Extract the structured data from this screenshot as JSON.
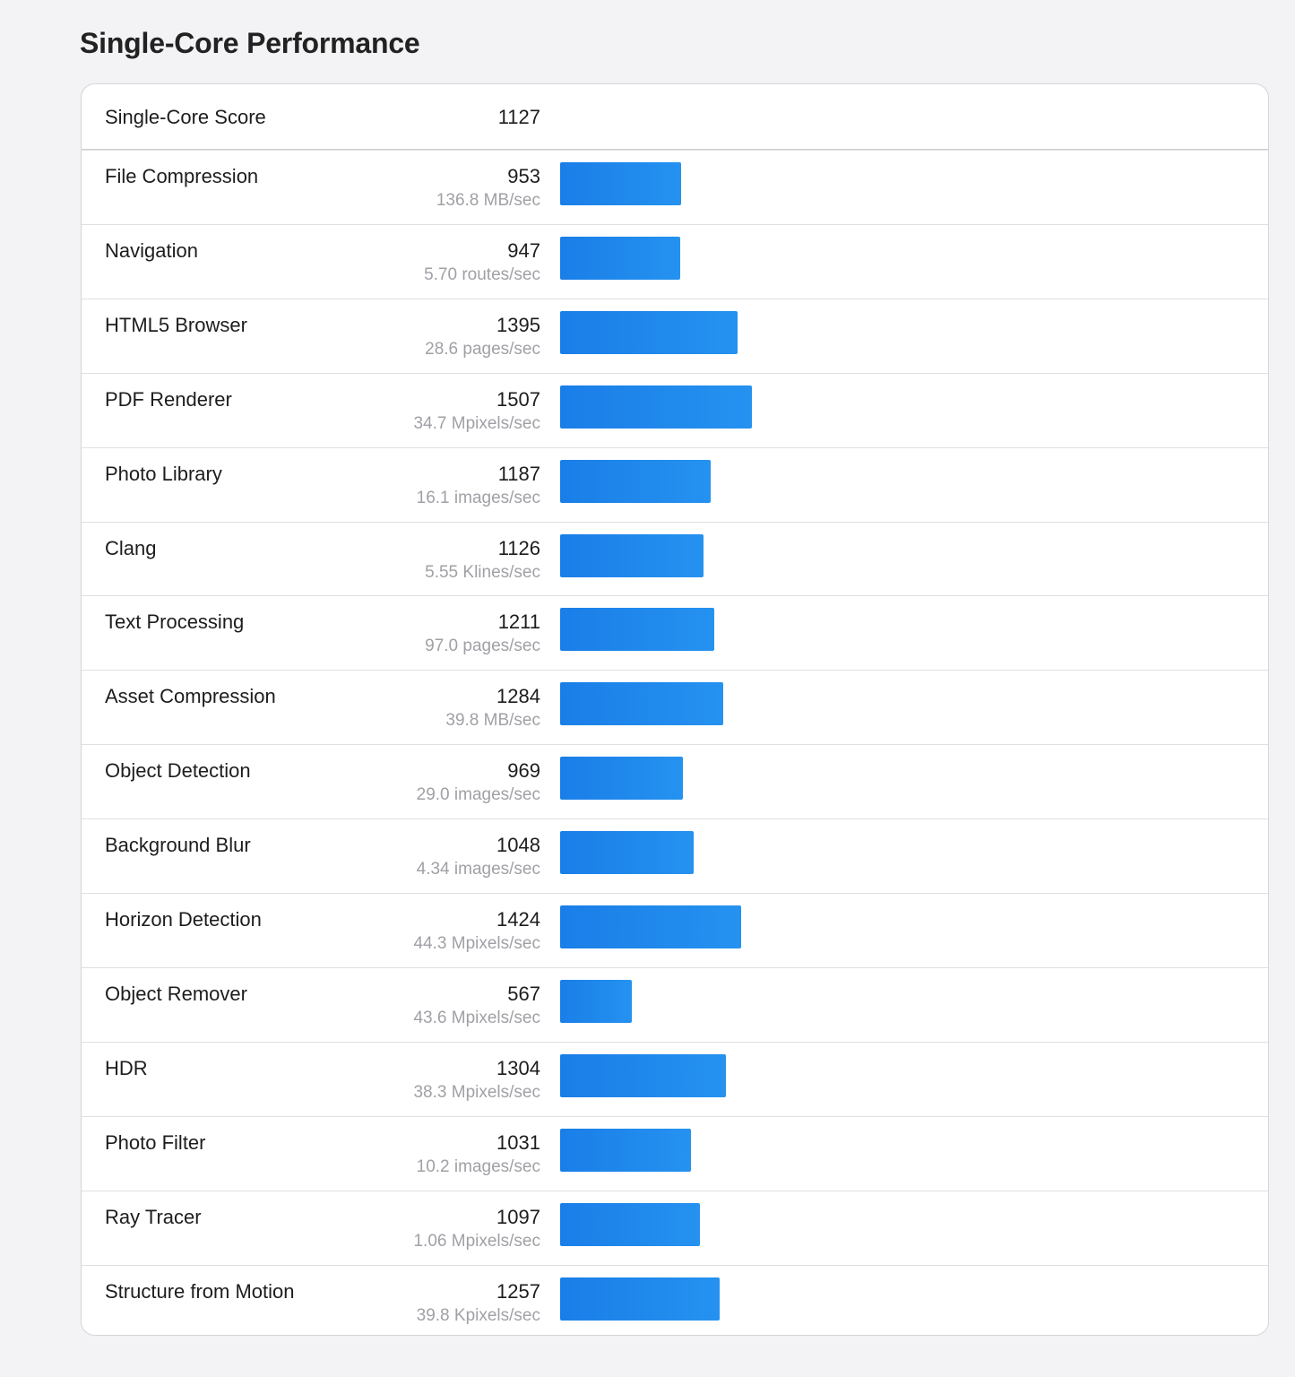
{
  "header": {
    "title": "Single-Core Performance"
  },
  "chart_data": {
    "type": "bar",
    "orientation": "horizontal",
    "title": "Single-Core Performance",
    "summary": {
      "label": "Single-Core Score",
      "score": 1127
    },
    "categories": [
      "File Compression",
      "Navigation",
      "HTML5 Browser",
      "PDF Renderer",
      "Photo Library",
      "Clang",
      "Text Processing",
      "Asset Compression",
      "Object Detection",
      "Background Blur",
      "Horizon Detection",
      "Object Remover",
      "HDR",
      "Photo Filter",
      "Ray Tracer",
      "Structure from Motion"
    ],
    "values": [
      953,
      947,
      1395,
      1507,
      1187,
      1126,
      1211,
      1284,
      969,
      1048,
      1424,
      567,
      1304,
      1031,
      1097,
      1257
    ],
    "rates": [
      "136.8 MB/sec",
      "5.70 routes/sec",
      "28.6 pages/sec",
      "34.7 Mpixels/sec",
      "16.1 images/sec",
      "5.55 Klines/sec",
      "97.0 pages/sec",
      "39.8 MB/sec",
      "29.0 images/sec",
      "4.34 images/sec",
      "44.3 Mpixels/sec",
      "43.6 Mpixels/sec",
      "38.3 Mpixels/sec",
      "10.2 images/sec",
      "1.06 Mpixels/sec",
      "39.8 Kpixels/sec"
    ],
    "bar_color": "#1f86ec",
    "grid": false,
    "legend": "none"
  }
}
